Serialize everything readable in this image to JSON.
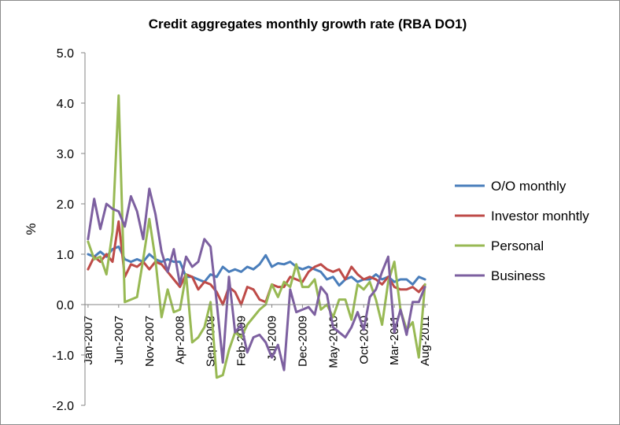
{
  "chart_data": {
    "type": "line",
    "title": "Credit aggregates monthly growth rate (RBA DO1)",
    "xlabel": "",
    "ylabel": "%",
    "ylim": [
      -2.0,
      5.0
    ],
    "yticks": [
      5.0,
      4.0,
      3.0,
      2.0,
      1.0,
      0.0,
      -1.0,
      -2.0
    ],
    "ytick_labels": [
      "5.0",
      "4.0",
      "3.0",
      "2.0",
      "1.0",
      "0.0",
      "-1.0",
      "-2.0"
    ],
    "legend_position": "right",
    "grid": false,
    "x_start": "Jan-2007",
    "x_count": 56,
    "x_ticks": [
      {
        "index": 0,
        "label": "Jan-2007"
      },
      {
        "index": 5,
        "label": "Jun-2007"
      },
      {
        "index": 10,
        "label": "Nov-2007"
      },
      {
        "index": 15,
        "label": "Apr-2008"
      },
      {
        "index": 20,
        "label": "Sep-2008"
      },
      {
        "index": 25,
        "label": "Feb-2009"
      },
      {
        "index": 30,
        "label": "Jul-2009"
      },
      {
        "index": 35,
        "label": "Dec-2009"
      },
      {
        "index": 40,
        "label": "May-2010"
      },
      {
        "index": 45,
        "label": "Oct-2010"
      },
      {
        "index": 50,
        "label": "Mar-2011"
      },
      {
        "index": 55,
        "label": "Aug-2011"
      }
    ],
    "series": [
      {
        "name": "O/O monthly",
        "color": "#4a7ebb",
        "values": [
          1.0,
          0.95,
          1.05,
          0.95,
          1.1,
          1.15,
          0.9,
          0.85,
          0.9,
          0.85,
          1.0,
          0.9,
          0.85,
          0.9,
          0.85,
          0.85,
          0.55,
          0.55,
          0.5,
          0.45,
          0.6,
          0.55,
          0.75,
          0.65,
          0.7,
          0.65,
          0.75,
          0.7,
          0.8,
          0.98,
          0.75,
          0.82,
          0.8,
          0.85,
          0.75,
          0.7,
          0.75,
          0.7,
          0.65,
          0.5,
          0.55,
          0.38,
          0.5,
          0.55,
          0.45,
          0.5,
          0.5,
          0.6,
          0.5,
          0.55,
          0.45,
          0.5,
          0.5,
          0.4,
          0.55,
          0.5
        ]
      },
      {
        "name": "Investor monhtly",
        "color": "#be4b48",
        "values": [
          0.7,
          0.95,
          0.85,
          1.0,
          0.85,
          1.65,
          0.55,
          0.8,
          0.75,
          0.85,
          0.7,
          0.85,
          0.8,
          0.65,
          0.5,
          0.35,
          0.6,
          0.55,
          0.3,
          0.45,
          0.4,
          0.25,
          0.0,
          0.35,
          0.25,
          0.0,
          0.35,
          0.3,
          0.1,
          0.05,
          0.4,
          0.35,
          0.35,
          0.55,
          0.5,
          0.45,
          0.65,
          0.75,
          0.8,
          0.7,
          0.65,
          0.7,
          0.5,
          0.75,
          0.6,
          0.5,
          0.55,
          0.5,
          0.4,
          0.55,
          0.35,
          0.3,
          0.3,
          0.35,
          0.25,
          0.4
        ]
      },
      {
        "name": "Personal",
        "color": "#98b954",
        "values": [
          1.25,
          0.9,
          0.95,
          0.6,
          1.45,
          4.15,
          0.05,
          0.1,
          0.15,
          0.9,
          1.7,
          0.9,
          -0.25,
          0.3,
          -0.15,
          -0.1,
          0.6,
          -0.75,
          -0.65,
          -0.45,
          0.05,
          -1.45,
          -1.4,
          -0.9,
          -0.55,
          -0.65,
          -0.4,
          -0.25,
          -0.1,
          0.0,
          0.4,
          0.15,
          0.45,
          0.35,
          0.8,
          0.35,
          0.35,
          0.5,
          -0.1,
          0.0,
          -0.25,
          0.1,
          0.1,
          -0.3,
          0.4,
          0.3,
          0.45,
          0.1,
          -0.4,
          0.45,
          0.85,
          -0.1,
          -0.5,
          -0.35,
          -1.05,
          0.4
        ]
      },
      {
        "name": "Business",
        "color": "#7d60a0",
        "values": [
          1.3,
          2.1,
          1.5,
          2.0,
          1.9,
          1.85,
          1.55,
          2.15,
          1.85,
          1.3,
          2.3,
          1.8,
          1.05,
          0.65,
          1.1,
          0.4,
          0.95,
          0.75,
          0.85,
          1.3,
          1.15,
          0.05,
          -1.15,
          0.55,
          -0.55,
          -0.4,
          -0.95,
          -0.65,
          -0.6,
          -0.75,
          -1.05,
          -0.8,
          -1.3,
          0.3,
          -0.15,
          -0.1,
          -0.05,
          -0.2,
          0.35,
          0.2,
          -0.45,
          -0.55,
          -0.65,
          -0.45,
          -0.15,
          -0.5,
          0.15,
          0.3,
          0.65,
          0.95,
          -0.55,
          -0.1,
          -0.6,
          0.05,
          0.05,
          0.35
        ]
      }
    ]
  }
}
